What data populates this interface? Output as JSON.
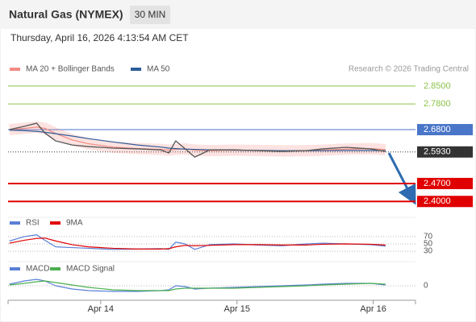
{
  "header": {
    "title": "Natural Gas (NYMEX)",
    "timeframe": "30 MIN",
    "datetime": "Thursday, April 16, 2026 4:13:54 AM CET",
    "credit": "Research © 2026 Trading Central"
  },
  "chart_data": [
    {
      "type": "line",
      "xlim": [
        -0.68,
        2.31
      ],
      "ylim": [
        2.36,
        2.95
      ],
      "x": [
        -0.67,
        -0.56,
        -0.47,
        -0.41,
        -0.33,
        -0.21,
        -0.09,
        0.09,
        0.27,
        0.44,
        0.5,
        0.55,
        0.62,
        0.69,
        0.8,
        0.98,
        1.15,
        1.33,
        1.51,
        1.63,
        1.8,
        1.98,
        2.09
      ],
      "values": [
        2.68,
        2.693,
        2.705,
        2.667,
        2.636,
        2.62,
        2.614,
        2.608,
        2.605,
        2.601,
        2.589,
        2.636,
        2.605,
        2.573,
        2.601,
        2.601,
        2.598,
        2.595,
        2.598,
        2.605,
        2.611,
        2.605,
        2.595
      ],
      "color": "#555555",
      "series": [
        {
          "name": "MA 20 + Bollinger Bands",
          "color": "#f28b82",
          "values": [
            2.68,
            2.685,
            2.69,
            2.685,
            2.665,
            2.64,
            2.625,
            2.612,
            2.606,
            2.603,
            2.6,
            2.603,
            2.605,
            2.6,
            2.598,
            2.6,
            2.599,
            2.597,
            2.598,
            2.6,
            2.604,
            2.606,
            2.602
          ]
        },
        {
          "name": "MA 50",
          "color": "#2e5c99",
          "values": [
            2.678,
            2.676,
            2.673,
            2.67,
            2.664,
            2.655,
            2.645,
            2.632,
            2.62,
            2.612,
            2.608,
            2.606,
            2.604,
            2.603,
            2.601,
            2.6,
            2.599,
            2.598,
            2.598,
            2.598,
            2.599,
            2.599,
            2.598
          ]
        }
      ],
      "levels": {
        "values": [
          2.85,
          2.78,
          2.68,
          2.593,
          2.47,
          2.4
        ],
        "value_labels": [
          "2.8500",
          "2.7800",
          "2.6800",
          "2.5930",
          "2.4700",
          "2.4000"
        ],
        "colors": [
          "#8bc34a",
          "#8bc34a",
          "#4a76c9",
          "#333333",
          "#e00000",
          "#e00000"
        ],
        "label_styles": [
          "text",
          "text",
          "box",
          "box",
          "box",
          "box"
        ],
        "line_styles": [
          "solid",
          "solid",
          "solid",
          "dotted",
          "solid",
          "solid"
        ],
        "line_widths": [
          1,
          1,
          1,
          1,
          2,
          2
        ]
      }
    },
    {
      "type": "line",
      "xlim": [
        -0.68,
        2.31
      ],
      "ylim": [
        17,
        83
      ],
      "yticks": [
        30,
        50,
        70
      ],
      "grid": true,
      "x": [
        -0.67,
        -0.56,
        -0.47,
        -0.41,
        -0.33,
        -0.21,
        -0.09,
        0.09,
        0.27,
        0.44,
        0.5,
        0.55,
        0.62,
        0.69,
        0.8,
        0.98,
        1.15,
        1.33,
        1.51,
        1.63,
        1.8,
        1.98,
        2.09
      ],
      "series": [
        {
          "name": "RSI",
          "color": "#5b7fd6",
          "values": [
            58,
            70,
            75,
            60,
            42,
            40,
            38,
            35,
            36,
            37,
            35,
            55,
            50,
            35,
            48,
            50,
            47,
            45,
            50,
            52,
            50,
            48,
            44
          ]
        },
        {
          "name": "9MA",
          "color": "#e00000",
          "values": [
            52,
            60,
            65,
            66,
            58,
            48,
            42,
            38,
            36,
            36,
            37,
            42,
            46,
            45,
            46,
            48,
            48,
            47,
            47,
            49,
            50,
            49,
            47
          ]
        }
      ]
    },
    {
      "type": "line",
      "xlim": [
        -0.68,
        2.31
      ],
      "ylim": [
        -0.015,
        0.015
      ],
      "yticks": [
        0
      ],
      "grid": true,
      "xticks": [
        {
          "value": 0,
          "label": "Apr 14"
        },
        {
          "value": 1,
          "label": "Apr 15"
        },
        {
          "value": 2,
          "label": "Apr 16"
        }
      ],
      "x": [
        -0.67,
        -0.56,
        -0.47,
        -0.41,
        -0.33,
        -0.21,
        -0.09,
        0.09,
        0.27,
        0.44,
        0.5,
        0.55,
        0.62,
        0.69,
        0.8,
        0.98,
        1.15,
        1.33,
        1.51,
        1.63,
        1.8,
        1.98,
        2.09
      ],
      "series": [
        {
          "name": "MACD",
          "color": "#5b7fd6",
          "values": [
            0.002,
            0.006,
            0.008,
            0.006,
            0.0,
            -0.004,
            -0.006,
            -0.007,
            -0.007,
            -0.006,
            -0.005,
            0.0,
            -0.001,
            -0.004,
            -0.003,
            -0.002,
            -0.001,
            0.0,
            0.001,
            0.002,
            0.003,
            0.003,
            0.001
          ]
        },
        {
          "name": "MACD Signal",
          "color": "#4caf50",
          "values": [
            0.001,
            0.003,
            0.005,
            0.006,
            0.004,
            0.001,
            -0.002,
            -0.005,
            -0.006,
            -0.006,
            -0.006,
            -0.004,
            -0.003,
            -0.003,
            -0.003,
            -0.003,
            -0.002,
            -0.001,
            0.0,
            0.001,
            0.002,
            0.003,
            0.002
          ]
        }
      ]
    }
  ]
}
